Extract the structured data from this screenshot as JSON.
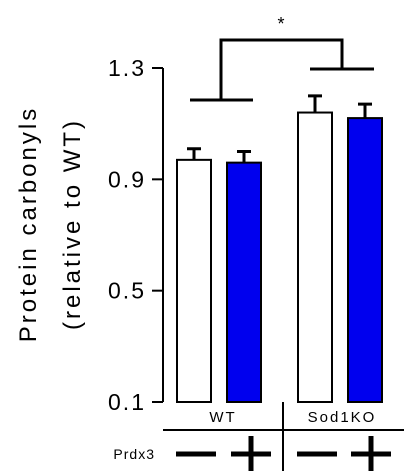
{
  "chart_data": {
    "type": "bar",
    "title": "",
    "ylabel_line1": "Protein carbonyls",
    "ylabel_line2": "(relative to WT)",
    "ylim": [
      0.1,
      1.3
    ],
    "yticks": [
      "0.1",
      "0.5",
      "0.9",
      "1.3"
    ],
    "groups": [
      "WT",
      "Sod1KO"
    ],
    "factor_label": "Prdx3",
    "factor_levels": [
      "−",
      "+"
    ],
    "series": [
      {
        "level": "−",
        "color": "#ffffff",
        "values": [
          0.97,
          1.14
        ],
        "errors": [
          0.04,
          0.06
        ]
      },
      {
        "level": "+",
        "color": "#0000ee",
        "values": [
          0.96,
          1.12
        ],
        "errors": [
          0.04,
          0.05
        ]
      }
    ],
    "significance": {
      "label": "*",
      "between": [
        "WT",
        "Sod1KO"
      ]
    }
  }
}
